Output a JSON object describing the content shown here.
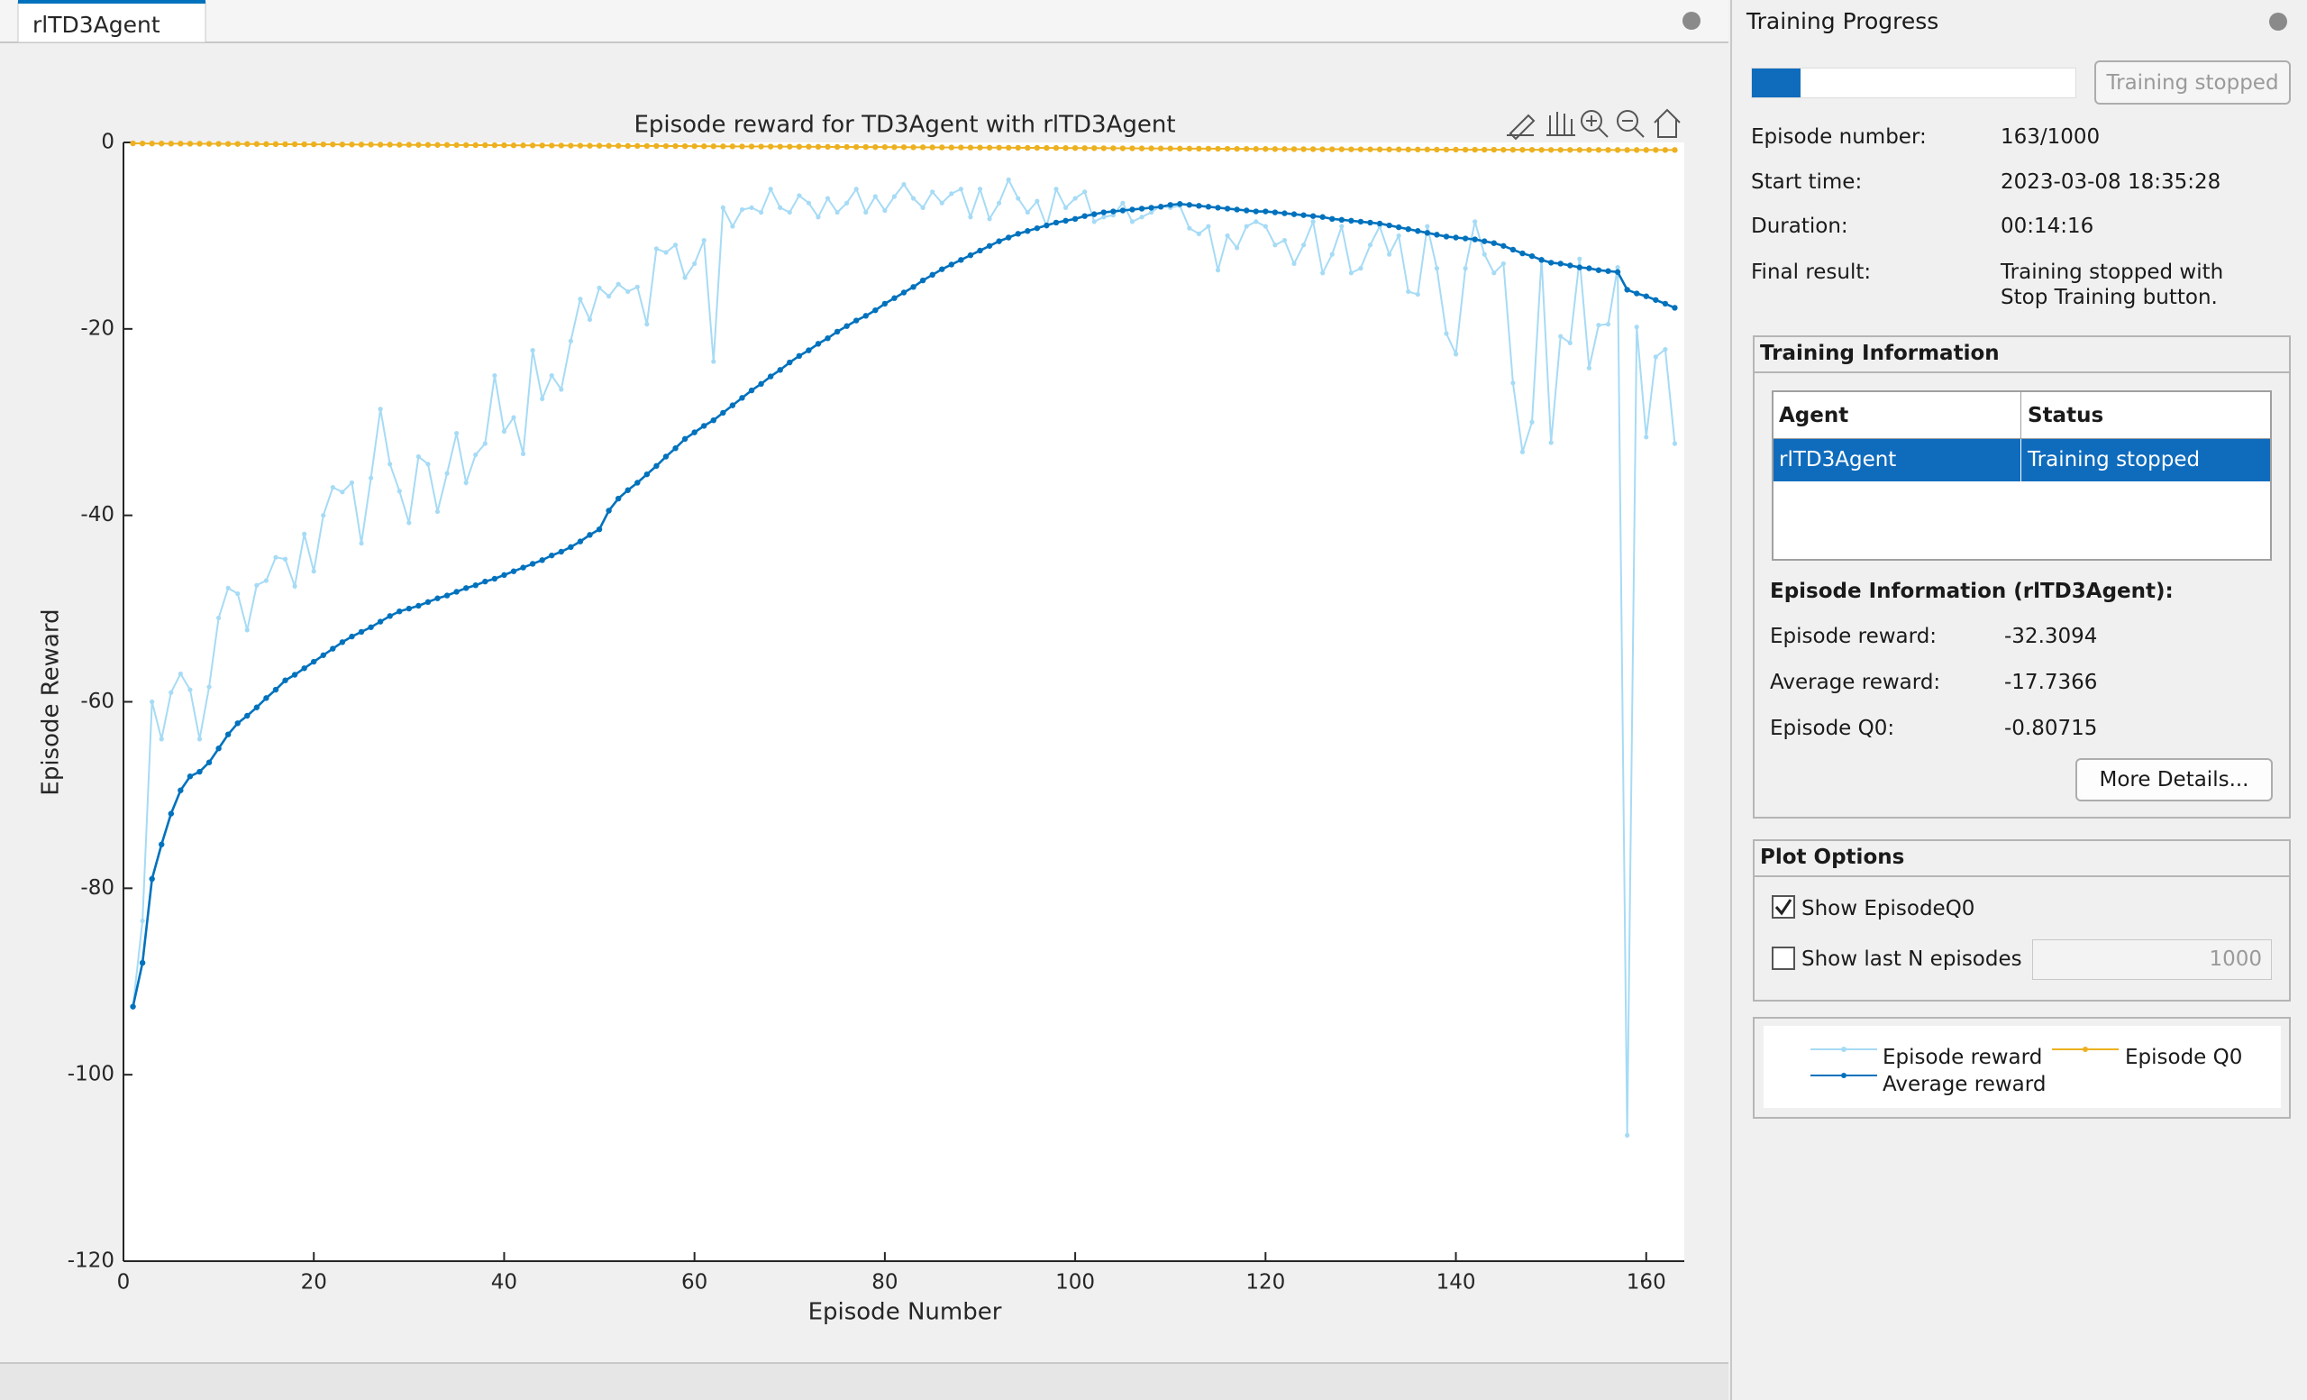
{
  "tab": {
    "title": "rlTD3Agent"
  },
  "chart_data": {
    "type": "line",
    "title": "Episode reward for TD3Agent with rlTD3Agent",
    "x_label": "Episode Number",
    "y_label": "Episode Reward",
    "xlim": [
      0,
      164
    ],
    "ylim": [
      -120,
      0
    ],
    "xticks": [
      0,
      20,
      40,
      60,
      80,
      100,
      120,
      140,
      160
    ],
    "yticks": [
      -120,
      -100,
      -80,
      -60,
      -40,
      -20,
      0
    ],
    "grid": false,
    "x": [
      1,
      2,
      3,
      4,
      5,
      6,
      7,
      8,
      9,
      10,
      11,
      12,
      13,
      14,
      15,
      16,
      17,
      18,
      19,
      20,
      21,
      22,
      23,
      24,
      25,
      26,
      27,
      28,
      29,
      30,
      31,
      32,
      33,
      34,
      35,
      36,
      37,
      38,
      39,
      40,
      41,
      42,
      43,
      44,
      45,
      46,
      47,
      48,
      49,
      50,
      51,
      52,
      53,
      54,
      55,
      56,
      57,
      58,
      59,
      60,
      61,
      62,
      63,
      64,
      65,
      66,
      67,
      68,
      69,
      70,
      71,
      72,
      73,
      74,
      75,
      76,
      77,
      78,
      79,
      80,
      81,
      82,
      83,
      84,
      85,
      86,
      87,
      88,
      89,
      90,
      91,
      92,
      93,
      94,
      95,
      96,
      97,
      98,
      99,
      100,
      101,
      102,
      103,
      104,
      105,
      106,
      107,
      108,
      109,
      110,
      111,
      112,
      113,
      114,
      115,
      116,
      117,
      118,
      119,
      120,
      121,
      122,
      123,
      124,
      125,
      126,
      127,
      128,
      129,
      130,
      131,
      132,
      133,
      134,
      135,
      136,
      137,
      138,
      139,
      140,
      141,
      142,
      143,
      144,
      145,
      146,
      147,
      148,
      149,
      150,
      151,
      152,
      153,
      154,
      155,
      156,
      157,
      158,
      159,
      160,
      161,
      162,
      163
    ],
    "series": [
      {
        "name": "Episode reward",
        "color": "#a6dbf5",
        "values": [
          -92.7,
          -83.5,
          -60,
          -64,
          -59,
          -57,
          -58.7,
          -64,
          -58.4,
          -51,
          -47.8,
          -48.4,
          -52.3,
          -47.5,
          -47,
          -44.5,
          -44.7,
          -47.6,
          -42,
          -46,
          -40,
          -37,
          -37.5,
          -36.5,
          -43,
          -36,
          -28.6,
          -34.5,
          -37.4,
          -40.8,
          -33.7,
          -34.5,
          -39.6,
          -35.5,
          -31.2,
          -36.5,
          -33.5,
          -32.3,
          -25,
          -31,
          -29.5,
          -33.4,
          -22.3,
          -27.5,
          -25,
          -26.5,
          -21.3,
          -16.8,
          -19,
          -15.6,
          -16.5,
          -15.2,
          -16,
          -15.5,
          -19.5,
          -11.4,
          -11.8,
          -11,
          -14.5,
          -13,
          -10.5,
          -23.5,
          -7,
          -9,
          -7.2,
          -7,
          -7.5,
          -5,
          -7,
          -7.5,
          -5.7,
          -6.5,
          -8,
          -6,
          -7.5,
          -6.5,
          -5,
          -7.5,
          -5.8,
          -7.3,
          -5.8,
          -4.5,
          -6,
          -7,
          -5.3,
          -6.5,
          -5.5,
          -5,
          -8,
          -5,
          -8.2,
          -6.5,
          -4,
          -6,
          -7.5,
          -6.3,
          -9,
          -5,
          -7,
          -6,
          -5.3,
          -8.5,
          -8,
          -7.8,
          -6.5,
          -8.5,
          -8,
          -7.5,
          -6.8,
          -7,
          -6.8,
          -9.2,
          -9.8,
          -9,
          -13.7,
          -10,
          -11.3,
          -9,
          -8.5,
          -9,
          -11,
          -10.5,
          -13,
          -11,
          -8.5,
          -14,
          -12,
          -9,
          -14,
          -13.5,
          -11,
          -9,
          -12,
          -10,
          -16,
          -16.3,
          -9,
          -13.5,
          -20.5,
          -22.7,
          -13.5,
          -8.5,
          -12,
          -14,
          -13,
          -25.8,
          -33.2,
          -30,
          -12.5,
          -32.2,
          -20.8,
          -21.5,
          -12.5,
          -24.2,
          -19.6,
          -19.5,
          -13.4,
          -106.5,
          -19.8,
          -31.6,
          -23,
          -22.2,
          -32.3094
        ]
      },
      {
        "name": "Average reward",
        "color": "#0072bd",
        "values": [
          -92.7,
          -88,
          -79,
          -75.3,
          -72,
          -69.5,
          -68,
          -67.5,
          -66.5,
          -65,
          -63.5,
          -62.3,
          -61.5,
          -60.6,
          -59.6,
          -58.7,
          -57.7,
          -57.1,
          -56.4,
          -55.7,
          -55,
          -54.3,
          -53.6,
          -53,
          -52.5,
          -52,
          -51.4,
          -50.8,
          -50.3,
          -50,
          -49.7,
          -49.3,
          -48.9,
          -48.6,
          -48.2,
          -47.8,
          -47.5,
          -47.1,
          -46.8,
          -46.4,
          -46,
          -45.6,
          -45.2,
          -44.8,
          -44.3,
          -43.9,
          -43.4,
          -42.8,
          -42.1,
          -41.5,
          -39.5,
          -38.2,
          -37.3,
          -36.5,
          -35.6,
          -34.7,
          -33.7,
          -32.8,
          -31.8,
          -31.1,
          -30.4,
          -29.8,
          -29,
          -28.2,
          -27.4,
          -26.6,
          -25.9,
          -25.1,
          -24.4,
          -23.6,
          -22.9,
          -22.3,
          -21.6,
          -21,
          -20.3,
          -19.7,
          -19.1,
          -18.6,
          -18,
          -17.3,
          -16.7,
          -16.1,
          -15.5,
          -14.8,
          -14.2,
          -13.6,
          -13.1,
          -12.6,
          -12.1,
          -11.6,
          -11.1,
          -10.6,
          -10.2,
          -9.8,
          -9.5,
          -9.2,
          -8.9,
          -8.6,
          -8.4,
          -8.2,
          -7.9,
          -7.7,
          -7.5,
          -7.4,
          -7.3,
          -7.2,
          -7.1,
          -7,
          -6.9,
          -6.7,
          -6.6,
          -6.7,
          -6.8,
          -6.9,
          -7,
          -7.1,
          -7.2,
          -7.3,
          -7.4,
          -7.4,
          -7.5,
          -7.6,
          -7.7,
          -7.8,
          -7.9,
          -8,
          -8.2,
          -8.3,
          -8.4,
          -8.5,
          -8.6,
          -8.7,
          -8.9,
          -9.1,
          -9.3,
          -9.5,
          -9.7,
          -9.9,
          -10.1,
          -10.2,
          -10.3,
          -10.4,
          -10.6,
          -10.8,
          -11.1,
          -11.5,
          -11.9,
          -12.2,
          -12.6,
          -12.9,
          -13,
          -13.2,
          -13.4,
          -13.5,
          -13.7,
          -13.8,
          -13.9,
          -15.8,
          -16.2,
          -16.5,
          -16.9,
          -17.3,
          -17.7366
        ]
      },
      {
        "name": "Episode Q0",
        "color": "#edb120",
        "values": [
          -0.1,
          -0.11,
          -0.12,
          -0.12,
          -0.13,
          -0.13,
          -0.14,
          -0.14,
          -0.15,
          -0.15,
          -0.16,
          -0.16,
          -0.17,
          -0.17,
          -0.18,
          -0.18,
          -0.19,
          -0.19,
          -0.2,
          -0.2,
          -0.21,
          -0.21,
          -0.22,
          -0.22,
          -0.23,
          -0.23,
          -0.24,
          -0.24,
          -0.25,
          -0.25,
          -0.26,
          -0.26,
          -0.27,
          -0.27,
          -0.28,
          -0.28,
          -0.29,
          -0.29,
          -0.3,
          -0.3,
          -0.31,
          -0.31,
          -0.32,
          -0.32,
          -0.33,
          -0.33,
          -0.34,
          -0.34,
          -0.35,
          -0.35,
          -0.36,
          -0.36,
          -0.37,
          -0.37,
          -0.38,
          -0.38,
          -0.39,
          -0.39,
          -0.4,
          -0.4,
          -0.41,
          -0.41,
          -0.42,
          -0.42,
          -0.43,
          -0.43,
          -0.44,
          -0.44,
          -0.45,
          -0.45,
          -0.46,
          -0.46,
          -0.47,
          -0.47,
          -0.48,
          -0.48,
          -0.49,
          -0.49,
          -0.5,
          -0.5,
          -0.51,
          -0.51,
          -0.52,
          -0.52,
          -0.53,
          -0.53,
          -0.54,
          -0.54,
          -0.55,
          -0.55,
          -0.56,
          -0.56,
          -0.57,
          -0.57,
          -0.58,
          -0.58,
          -0.59,
          -0.59,
          -0.6,
          -0.6,
          -0.61,
          -0.61,
          -0.62,
          -0.62,
          -0.63,
          -0.63,
          -0.64,
          -0.64,
          -0.65,
          -0.65,
          -0.66,
          -0.66,
          -0.67,
          -0.67,
          -0.68,
          -0.68,
          -0.69,
          -0.69,
          -0.7,
          -0.7,
          -0.71,
          -0.71,
          -0.72,
          -0.72,
          -0.72,
          -0.73,
          -0.73,
          -0.73,
          -0.74,
          -0.74,
          -0.74,
          -0.75,
          -0.75,
          -0.75,
          -0.76,
          -0.76,
          -0.76,
          -0.77,
          -0.77,
          -0.77,
          -0.78,
          -0.78,
          -0.78,
          -0.78,
          -0.79,
          -0.79,
          -0.79,
          -0.79,
          -0.8,
          -0.8,
          -0.8,
          -0.8,
          -0.8,
          -0.8,
          -0.8,
          -0.81,
          -0.81,
          -0.81,
          -0.81,
          -0.81,
          -0.81,
          -0.81,
          -0.80715
        ]
      }
    ]
  },
  "panel": {
    "title": "Training Progress",
    "status_button": "Training stopped",
    "fields": [
      {
        "label": "Episode number:",
        "value": "163/1000"
      },
      {
        "label": "Start time:",
        "value": "2023-03-08 18:35:28"
      },
      {
        "label": "Duration:",
        "value": "00:14:16"
      },
      {
        "label": "Final result:",
        "value": "Training stopped with Stop Training button."
      }
    ],
    "training_information": {
      "title": "Training Information",
      "columns": [
        "Agent",
        "Status"
      ],
      "rows": [
        [
          "rlTD3Agent",
          "Training stopped"
        ]
      ]
    },
    "episode_information": {
      "title": "Episode Information (rlTD3Agent):",
      "fields": [
        {
          "label": "Episode reward:",
          "value": "-32.3094"
        },
        {
          "label": "Average reward:",
          "value": "-17.7366"
        },
        {
          "label": "Episode Q0:",
          "value": "-0.80715"
        }
      ],
      "button": "More Details..."
    },
    "plot_options": {
      "title": "Plot Options",
      "show_q0": {
        "label": "Show EpisodeQ0",
        "checked": true
      },
      "show_last_n": {
        "label": "Show last N episodes",
        "checked": false,
        "value": "1000"
      }
    }
  }
}
